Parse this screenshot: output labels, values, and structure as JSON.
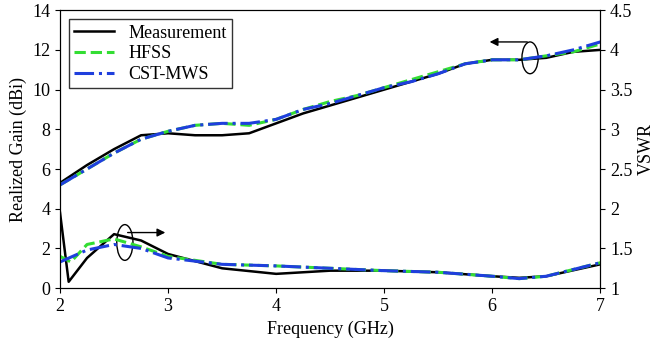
{
  "chart_data": {
    "type": "line",
    "x_label": "Frequency (GHz)",
    "y_label": "Realized Gain (dBi)",
    "y2_label": "VSWR",
    "xlim": [
      2,
      7
    ],
    "xticks": [
      2,
      3,
      4,
      5,
      6,
      7
    ],
    "ylim": [
      0,
      14
    ],
    "yticks": [
      0,
      2,
      4,
      6,
      8,
      10,
      12,
      14
    ],
    "y2lim": [
      1,
      4.5
    ],
    "y2ticks": [
      1,
      1.5,
      2,
      2.5,
      3,
      3.5,
      4,
      4.5
    ],
    "grid": false,
    "legend": "upper left",
    "series": [
      {
        "name": "Measurement",
        "color": "#000000",
        "line_style": "solid",
        "axis": "y",
        "x": [
          2.0,
          2.25,
          2.5,
          2.75,
          3.0,
          3.25,
          3.5,
          3.75,
          4.0,
          4.25,
          4.5,
          4.75,
          5.0,
          5.25,
          5.5,
          5.75,
          6.0,
          6.25,
          6.5,
          6.75,
          7.0
        ],
        "values": [
          5.3,
          6.2,
          7.0,
          7.7,
          7.8,
          7.7,
          7.7,
          7.8,
          8.3,
          8.8,
          9.2,
          9.6,
          10.0,
          10.4,
          10.8,
          11.3,
          11.5,
          11.5,
          11.6,
          11.9,
          12.0
        ]
      },
      {
        "name": "HFSS",
        "color": "#33dd33",
        "line_style": "dashed",
        "axis": "y",
        "x": [
          2.0,
          2.25,
          2.5,
          2.75,
          3.0,
          3.25,
          3.5,
          3.75,
          4.0,
          4.25,
          4.5,
          4.75,
          5.0,
          5.25,
          5.5,
          5.75,
          6.0,
          6.25,
          6.5,
          6.75,
          7.0
        ],
        "values": [
          5.2,
          6.0,
          6.8,
          7.5,
          7.9,
          8.2,
          8.3,
          8.2,
          8.5,
          9.0,
          9.4,
          9.7,
          10.1,
          10.5,
          10.9,
          11.3,
          11.5,
          11.5,
          11.7,
          11.9,
          12.3
        ]
      },
      {
        "name": "CST-MWS",
        "color": "#1f3fdd",
        "line_style": "dashdot",
        "axis": "y",
        "x": [
          2.0,
          2.25,
          2.5,
          2.75,
          3.0,
          3.25,
          3.5,
          3.75,
          4.0,
          4.25,
          4.5,
          4.75,
          5.0,
          5.25,
          5.5,
          5.75,
          6.0,
          6.25,
          6.5,
          6.75,
          7.0
        ],
        "values": [
          5.2,
          6.0,
          6.8,
          7.5,
          7.9,
          8.2,
          8.3,
          8.3,
          8.5,
          9.0,
          9.3,
          9.7,
          10.1,
          10.4,
          10.8,
          11.3,
          11.5,
          11.5,
          11.7,
          12.0,
          12.4
        ]
      },
      {
        "name": "Measurement",
        "color": "#000000",
        "line_style": "solid",
        "axis": "y2",
        "x": [
          2.0,
          2.08,
          2.25,
          2.5,
          2.75,
          3.0,
          3.5,
          4.0,
          4.5,
          5.0,
          5.5,
          6.0,
          6.25,
          6.5,
          7.0
        ],
        "values": [
          1.95,
          1.08,
          1.38,
          1.68,
          1.6,
          1.43,
          1.25,
          1.18,
          1.22,
          1.22,
          1.2,
          1.15,
          1.13,
          1.15,
          1.3
        ]
      },
      {
        "name": "HFSS",
        "color": "#33dd33",
        "line_style": "dashed",
        "axis": "y2",
        "x": [
          2.0,
          2.1,
          2.25,
          2.5,
          2.75,
          3.0,
          3.5,
          4.0,
          4.5,
          5.0,
          5.5,
          6.0,
          6.25,
          6.5,
          7.0
        ],
        "values": [
          1.4,
          1.33,
          1.55,
          1.62,
          1.52,
          1.4,
          1.3,
          1.28,
          1.25,
          1.22,
          1.2,
          1.15,
          1.12,
          1.15,
          1.32
        ]
      },
      {
        "name": "CST-MWS",
        "color": "#1f3fdd",
        "line_style": "dashdot",
        "axis": "y2",
        "x": [
          2.0,
          2.25,
          2.5,
          2.75,
          3.0,
          3.5,
          4.0,
          4.5,
          5.0,
          5.5,
          6.0,
          6.25,
          6.5,
          7.0
        ],
        "values": [
          1.33,
          1.48,
          1.55,
          1.5,
          1.38,
          1.3,
          1.28,
          1.25,
          1.22,
          1.2,
          1.15,
          1.12,
          1.15,
          1.32
        ]
      }
    ]
  }
}
